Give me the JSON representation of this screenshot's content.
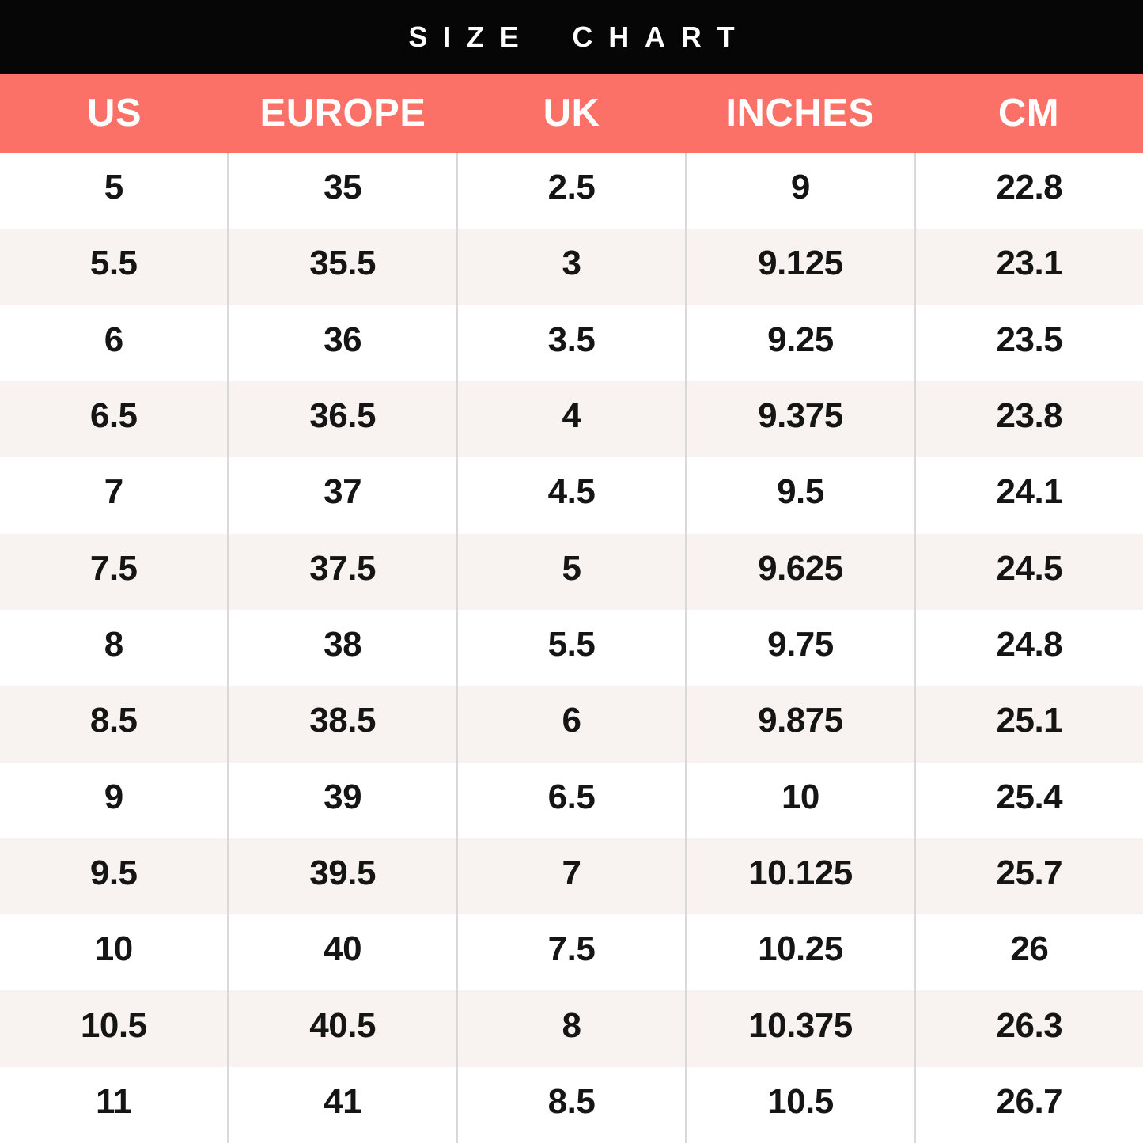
{
  "title": "SIZE CHART",
  "colors": {
    "banner_bg": "#060606",
    "banner_text": "#FFFFFF",
    "accent_header_bg": "#FB7168",
    "header_text": "#FFFFFF",
    "row_bg": "#FFFFFF",
    "row_alt_bg": "#F8F2F1",
    "divider": "#D9D9D9",
    "body_text": "#151515"
  },
  "chart_data": {
    "type": "table",
    "title": "SIZE CHART",
    "columns": [
      "US",
      "EUROPE",
      "UK",
      "INCHES",
      "CM"
    ],
    "rows": [
      [
        "5",
        "35",
        "2.5",
        "9",
        "22.8"
      ],
      [
        "5.5",
        "35.5",
        "3",
        "9.125",
        "23.1"
      ],
      [
        "6",
        "36",
        "3.5",
        "9.25",
        "23.5"
      ],
      [
        "6.5",
        "36.5",
        "4",
        "9.375",
        "23.8"
      ],
      [
        "7",
        "37",
        "4.5",
        "9.5",
        "24.1"
      ],
      [
        "7.5",
        "37.5",
        "5",
        "9.625",
        "24.5"
      ],
      [
        "8",
        "38",
        "5.5",
        "9.75",
        "24.8"
      ],
      [
        "8.5",
        "38.5",
        "6",
        "9.875",
        "25.1"
      ],
      [
        "9",
        "39",
        "6.5",
        "10",
        "25.4"
      ],
      [
        "9.5",
        "39.5",
        "7",
        "10.125",
        "25.7"
      ],
      [
        "10",
        "40",
        "7.5",
        "10.25",
        "26"
      ],
      [
        "10.5",
        "40.5",
        "8",
        "10.375",
        "26.3"
      ],
      [
        "11",
        "41",
        "8.5",
        "10.5",
        "26.7"
      ]
    ],
    "layout": {
      "columns_equal_width": true,
      "alternating_rows": true,
      "grid_vertical_only": true
    }
  }
}
